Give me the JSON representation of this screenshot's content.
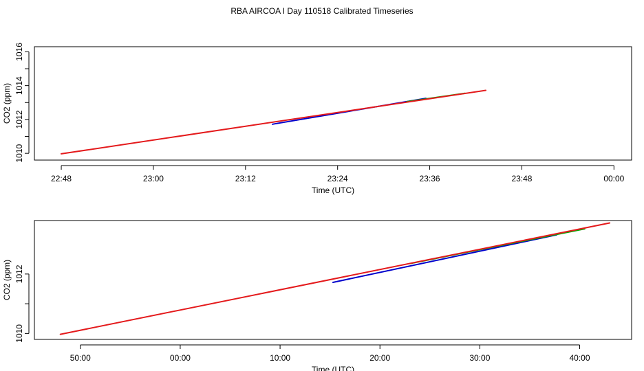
{
  "title": "RBA AIRCOA I  Day 110518  Calibrated Timeseries",
  "chart_data": [
    {
      "type": "line",
      "xlabel": "Time (UTC)",
      "ylabel": "CO2 (ppm)",
      "x_ticks": [
        {
          "value": 0,
          "label": "22:48"
        },
        {
          "value": 12,
          "label": "23:00"
        },
        {
          "value": 24,
          "label": "23:12"
        },
        {
          "value": 36,
          "label": "23:24"
        },
        {
          "value": 48,
          "label": "23:36"
        },
        {
          "value": 60,
          "label": "23:48"
        },
        {
          "value": 72,
          "label": "00:00"
        }
      ],
      "xlim": [
        -3.5,
        74.3
      ],
      "y_ticks": [
        1010,
        1012,
        1014,
        1016
      ],
      "ylim": [
        1009.6,
        1016.3
      ],
      "series": [
        {
          "color": "#0000cc",
          "x": [
            27.5,
            47.5
          ],
          "y": [
            1011.72,
            1013.25
          ]
        },
        {
          "color": "#00aa00",
          "x": [
            45.0,
            52.6
          ],
          "y": [
            1013.05,
            1013.55
          ]
        },
        {
          "color": "#e41a1c",
          "x": [
            0.0,
            55.3
          ],
          "y": [
            1009.97,
            1013.72
          ]
        }
      ]
    },
    {
      "type": "line",
      "xlabel": "Time (UTC)",
      "ylabel": "CO2 (ppm)",
      "x_ticks": [
        {
          "value": -10,
          "label": "50:00"
        },
        {
          "value": 0,
          "label": "00:00"
        },
        {
          "value": 10,
          "label": "10:00"
        },
        {
          "value": 20,
          "label": "20:00"
        },
        {
          "value": 30,
          "label": "30:00"
        },
        {
          "value": 40,
          "label": "40:00"
        }
      ],
      "xlim": [
        -14.6,
        45.2
      ],
      "y_ticks": [
        1010,
        1012
      ],
      "ylim": [
        1009.8,
        1013.8
      ],
      "series": [
        {
          "color": "#0000cc",
          "x": [
            15.3,
            37.7
          ],
          "y": [
            1011.72,
            1013.32
          ]
        },
        {
          "color": "#00aa00",
          "x": [
            23.0,
            40.5
          ],
          "y": [
            1012.35,
            1013.52
          ]
        },
        {
          "color": "#e41a1c",
          "x": [
            -12.0,
            43.0
          ],
          "y": [
            1009.97,
            1013.72
          ]
        }
      ]
    }
  ]
}
